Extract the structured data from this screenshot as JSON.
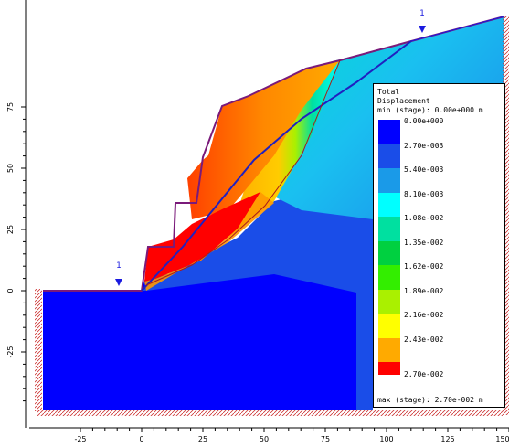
{
  "legend": {
    "title_line1": "Total",
    "title_line2": "Displacement",
    "min_text": "min (stage): 0.00e+000 m",
    "max_text": "max (stage): 2.70e-002 m",
    "entries": [
      {
        "label": "0.00e+000",
        "color": "#0000ff"
      },
      {
        "label": "2.70e-003",
        "color": "#1a4de8"
      },
      {
        "label": "5.40e-003",
        "color": "#1a9ae8"
      },
      {
        "label": "8.10e-003",
        "color": "#00ffff"
      },
      {
        "label": "1.08e-002",
        "color": "#00e0a0"
      },
      {
        "label": "1.35e-002",
        "color": "#00d040"
      },
      {
        "label": "1.62e-002",
        "color": "#33ee00"
      },
      {
        "label": "1.89e-002",
        "color": "#aaf000"
      },
      {
        "label": "2.16e-002",
        "color": "#ffff00"
      },
      {
        "label": "2.43e-002",
        "color": "#ffaa00"
      },
      {
        "label": "2.70e-002",
        "color": "#ff0000"
      }
    ],
    "extra_swatch_colors": [
      "#ff7700"
    ]
  },
  "x_axis": {
    "ticks": [
      "-25",
      "0",
      "25",
      "50",
      "75",
      "100",
      "125",
      "150"
    ]
  },
  "y_axis": {
    "ticks": [
      "75",
      "50",
      "25",
      "0",
      "-25"
    ]
  },
  "water_table_markers": [
    "1",
    "1"
  ],
  "colors": {
    "background": "#ffffff",
    "boundary": "#7a1a7a",
    "slip_surface": "#2020c0",
    "water_marker": "#1a1adf",
    "restraint": "#cc3333"
  }
}
